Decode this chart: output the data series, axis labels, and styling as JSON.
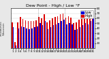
{
  "title": "Dew Point - High / Low °F",
  "ylabel_left": "MILWAUKEE\nWisconsin",
  "background_color": "#e8e8e8",
  "plot_bg": "#ffffff",
  "high_color": "#dd0000",
  "low_color": "#0000dd",
  "legend_high": "High",
  "legend_low": "Low",
  "ylim": [
    0,
    80
  ],
  "yticks": [
    10,
    20,
    30,
    40,
    50,
    60,
    70,
    80
  ],
  "days": [
    1,
    2,
    3,
    4,
    5,
    6,
    7,
    8,
    9,
    10,
    11,
    12,
    13,
    14,
    15,
    16,
    17,
    18,
    19,
    20,
    21,
    22,
    23,
    24,
    25,
    26,
    27,
    28,
    29,
    30,
    31
  ],
  "highs": [
    52,
    12,
    52,
    62,
    58,
    56,
    54,
    54,
    54,
    56,
    63,
    60,
    68,
    52,
    56,
    60,
    62,
    64,
    68,
    70,
    61,
    64,
    61,
    50,
    52,
    57,
    60,
    64,
    62,
    67,
    72
  ],
  "lows": [
    42,
    6,
    40,
    44,
    42,
    40,
    38,
    40,
    42,
    44,
    50,
    46,
    54,
    38,
    42,
    46,
    48,
    50,
    54,
    57,
    48,
    50,
    48,
    37,
    38,
    42,
    46,
    50,
    48,
    54,
    60
  ],
  "dotted_after": [
    10,
    20
  ],
  "title_fontsize": 4.5,
  "tick_fontsize": 3.0,
  "legend_fontsize": 3.5,
  "bar_width": 0.4
}
